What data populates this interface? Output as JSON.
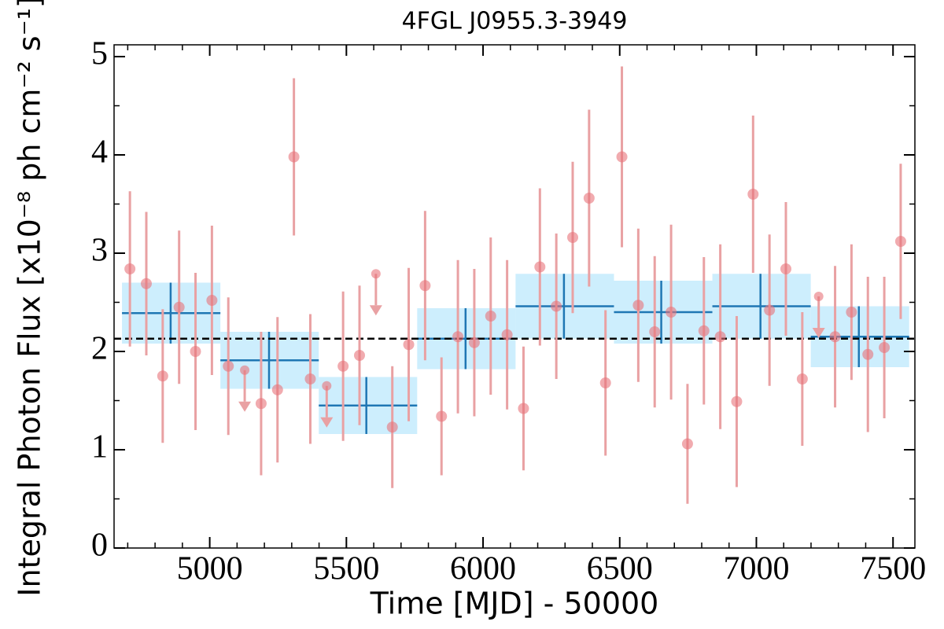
{
  "chart_data": {
    "type": "lightcurve",
    "title": "4FGL J0955.3-3949",
    "xlabel": "Time [MJD] - 50000",
    "ylabel": "Integral Photon Flux [x10⁻⁸ ph cm⁻² s⁻¹]",
    "xlim": [
      4650,
      7580
    ],
    "ylim": [
      0,
      5.12
    ],
    "xticks": [
      5000,
      5500,
      6000,
      6500,
      7000,
      7500
    ],
    "yticks": [
      0,
      1,
      2,
      3,
      4,
      5
    ],
    "minor_xticks": [
      4700,
      4800,
      4900,
      5100,
      5200,
      5300,
      5400,
      5600,
      5700,
      5800,
      5900,
      6100,
      6200,
      6300,
      6400,
      6600,
      6700,
      6800,
      6900,
      7100,
      7200,
      7300,
      7400
    ],
    "minor_yticks": [
      0.5,
      1.5,
      2.5,
      3.5,
      4.5
    ],
    "points": {
      "color": "#e8737a",
      "errcolor": "#e9a1a3",
      "x": [
        4708,
        4768,
        4828,
        4888,
        4948,
        5008,
        5068,
        5128,
        5188,
        5248,
        5308,
        5368,
        5428,
        5488,
        5548,
        5608,
        5668,
        5728,
        5788,
        5848,
        5908,
        5968,
        6028,
        6088,
        6148,
        6208,
        6268,
        6328,
        6388,
        6448,
        6508,
        6568,
        6628,
        6688,
        6748,
        6808,
        6868,
        6928,
        6988,
        7048,
        7108,
        7168,
        7228,
        7288,
        7348,
        7408,
        7468,
        7528
      ],
      "values": [
        2.84,
        2.69,
        1.75,
        2.45,
        2.0,
        2.52,
        1.85,
        1.81,
        1.47,
        1.61,
        3.98,
        1.72,
        1.65,
        1.85,
        1.96,
        2.79,
        1.23,
        2.07,
        2.67,
        1.34,
        2.15,
        2.09,
        2.36,
        2.17,
        1.42,
        2.86,
        2.46,
        3.16,
        3.56,
        1.68,
        3.98,
        2.47,
        2.2,
        2.4,
        1.06,
        2.21,
        2.15,
        1.49,
        3.6,
        2.42,
        2.84,
        1.72,
        2.56,
        2.15,
        2.4,
        1.97,
        2.04,
        3.12
      ],
      "errors": [
        0.79,
        0.73,
        0.68,
        0.78,
        0.8,
        0.76,
        0.7,
        null,
        0.73,
        0.74,
        0.8,
        0.66,
        null,
        0.76,
        0.71,
        null,
        0.62,
        0.78,
        0.76,
        0.6,
        0.78,
        0.75,
        0.8,
        0.76,
        0.63,
        0.8,
        0.74,
        0.77,
        0.9,
        0.74,
        0.92,
        0.78,
        0.77,
        0.89,
        0.61,
        0.75,
        0.94,
        0.87,
        0.8,
        0.77,
        0.68,
        0.68,
        null,
        0.72,
        0.69,
        0.79,
        0.72,
        0.79
      ],
      "upper_limit": [
        false,
        false,
        false,
        false,
        false,
        false,
        false,
        true,
        false,
        false,
        false,
        false,
        true,
        false,
        false,
        true,
        false,
        false,
        false,
        false,
        false,
        false,
        false,
        false,
        false,
        false,
        false,
        false,
        false,
        false,
        false,
        false,
        false,
        false,
        false,
        false,
        false,
        false,
        false,
        false,
        false,
        false,
        true,
        false,
        false,
        false,
        false,
        false
      ]
    },
    "binned": {
      "color": "#1f77b4",
      "fill": "#cdeefd",
      "bin_edges": [
        4679,
        5039,
        5399,
        5759,
        6119,
        6479,
        6839,
        7199,
        7559
      ],
      "x": [
        4857,
        5217,
        5573,
        5936,
        6296,
        6652,
        7015,
        7375
      ],
      "values": [
        2.39,
        1.91,
        1.45,
        2.13,
        2.46,
        2.4,
        2.46,
        2.15
      ],
      "errors": [
        0.31,
        0.29,
        0.29,
        0.31,
        0.33,
        0.32,
        0.33,
        0.31
      ]
    },
    "mean": {
      "value": 2.13,
      "color": "#000000"
    }
  }
}
